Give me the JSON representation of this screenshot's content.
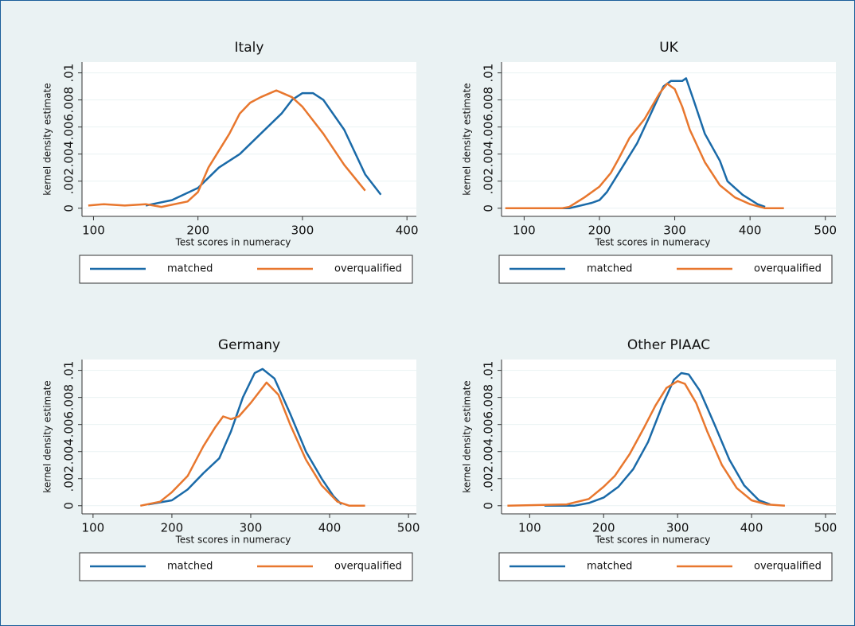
{
  "chart_data": [
    {
      "type": "line",
      "title": "Italy",
      "x_label": "Test scores in numeracy",
      "y_label": "kernel density estimate",
      "xlim": [
        89,
        409
      ],
      "ylim": [
        -0.0006,
        0.0108
      ],
      "xticks": [
        100,
        200,
        300,
        400
      ],
      "yticks": [
        0,
        {
          "value": 0.002,
          "label": ".002"
        },
        {
          "value": 0.004,
          "label": ".004"
        },
        {
          "value": 0.006,
          "label": ".006"
        },
        {
          "value": 0.008,
          "label": ".008"
        },
        {
          "value": 0.01,
          "label": ".01"
        }
      ],
      "grid": true,
      "series": [
        {
          "name": "matched",
          "color": "#1a6aa8",
          "x": [
            150,
            175,
            200,
            220,
            240,
            260,
            280,
            290,
            300,
            310,
            320,
            340,
            360,
            375
          ],
          "values": [
            0.0002,
            0.0006,
            0.0015,
            0.003,
            0.004,
            0.0055,
            0.007,
            0.008,
            0.0085,
            0.0085,
            0.008,
            0.0058,
            0.0025,
            0.001
          ]
        },
        {
          "name": "overqualified",
          "color": "#e8772e",
          "x": [
            95,
            110,
            130,
            150,
            165,
            190,
            200,
            210,
            230,
            240,
            250,
            260,
            275,
            290,
            300,
            320,
            340,
            360
          ],
          "values": [
            0.0002,
            0.0003,
            0.0002,
            0.0003,
            0.0001,
            0.0005,
            0.0012,
            0.003,
            0.0055,
            0.007,
            0.0078,
            0.0082,
            0.0087,
            0.0082,
            0.0075,
            0.0055,
            0.0032,
            0.0013
          ]
        }
      ]
    },
    {
      "type": "line",
      "title": "UK",
      "x_label": "Test scores in numeracy",
      "y_label": "kernel density estimate",
      "xlim": [
        70,
        514
      ],
      "ylim": [
        -0.0006,
        0.0108
      ],
      "xticks": [
        100,
        200,
        300,
        400,
        500
      ],
      "yticks": [
        0,
        {
          "value": 0.002,
          "label": ".002"
        },
        {
          "value": 0.004,
          "label": ".004"
        },
        {
          "value": 0.006,
          "label": ".006"
        },
        {
          "value": 0.008,
          "label": ".008"
        },
        {
          "value": 0.01,
          "label": ".01"
        }
      ],
      "grid": true,
      "series": [
        {
          "name": "matched",
          "color": "#1a6aa8",
          "x": [
            120,
            160,
            190,
            200,
            210,
            230,
            250,
            270,
            285,
            295,
            310,
            315,
            325,
            340,
            360,
            370,
            390,
            410,
            420
          ],
          "values": [
            0,
            0,
            0.0004,
            0.0006,
            0.0012,
            0.003,
            0.0048,
            0.0072,
            0.009,
            0.0094,
            0.0094,
            0.0096,
            0.008,
            0.0055,
            0.0035,
            0.002,
            0.001,
            0.0003,
            0.0001
          ]
        },
        {
          "name": "overqualified",
          "color": "#e8772e",
          "x": [
            75,
            150,
            160,
            180,
            200,
            215,
            225,
            240,
            260,
            280,
            290,
            300,
            310,
            320,
            340,
            360,
            380,
            400,
            420,
            445
          ],
          "values": [
            0,
            0,
            0.0001,
            0.0008,
            0.0016,
            0.0026,
            0.0036,
            0.0052,
            0.0066,
            0.0085,
            0.0092,
            0.0088,
            0.0075,
            0.0058,
            0.0034,
            0.0017,
            0.0008,
            0.0003,
            0,
            0
          ]
        }
      ]
    },
    {
      "type": "line",
      "title": "Germany",
      "x_label": "Test scores in numeracy",
      "y_label": "kernel density estimate",
      "xlim": [
        86,
        510
      ],
      "ylim": [
        -0.0006,
        0.0108
      ],
      "xticks": [
        100,
        200,
        300,
        400,
        500
      ],
      "yticks": [
        0,
        {
          "value": 0.002,
          "label": ".002"
        },
        {
          "value": 0.004,
          "label": ".004"
        },
        {
          "value": 0.006,
          "label": ".006"
        },
        {
          "value": 0.008,
          "label": ".008"
        },
        {
          "value": 0.01,
          "label": ".01"
        }
      ],
      "grid": true,
      "series": [
        {
          "name": "matched",
          "color": "#1a6aa8",
          "x": [
            170,
            200,
            220,
            240,
            260,
            275,
            290,
            305,
            315,
            330,
            350,
            370,
            390,
            405,
            415
          ],
          "values": [
            0.0001,
            0.0004,
            0.0012,
            0.0024,
            0.0035,
            0.0055,
            0.008,
            0.0098,
            0.0101,
            0.0094,
            0.0068,
            0.004,
            0.002,
            0.0007,
            0.0001
          ]
        },
        {
          "name": "overqualified",
          "color": "#e8772e",
          "x": [
            160,
            185,
            200,
            220,
            240,
            255,
            265,
            275,
            285,
            300,
            320,
            335,
            350,
            370,
            390,
            410,
            425,
            445
          ],
          "values": [
            0,
            0.0003,
            0.001,
            0.0022,
            0.0044,
            0.0058,
            0.0066,
            0.0064,
            0.0066,
            0.0076,
            0.0091,
            0.0082,
            0.006,
            0.0034,
            0.0015,
            0.0003,
            0,
            0
          ]
        }
      ]
    },
    {
      "type": "line",
      "title": "Other PIAAC",
      "x_label": "Test scores in numeracy",
      "y_label": "kernel density estimate",
      "xlim": [
        62,
        514
      ],
      "ylim": [
        -0.0006,
        0.0108
      ],
      "xticks": [
        100,
        200,
        300,
        400,
        500
      ],
      "yticks": [
        0,
        {
          "value": 0.002,
          "label": ".002"
        },
        {
          "value": 0.004,
          "label": ".004"
        },
        {
          "value": 0.006,
          "label": ".006"
        },
        {
          "value": 0.008,
          "label": ".008"
        },
        {
          "value": 0.01,
          "label": ".01"
        }
      ],
      "grid": true,
      "series": [
        {
          "name": "matched",
          "color": "#1a6aa8",
          "x": [
            120,
            160,
            180,
            200,
            220,
            240,
            260,
            280,
            295,
            305,
            315,
            330,
            350,
            370,
            390,
            410,
            425
          ],
          "values": [
            0,
            0,
            0.0002,
            0.0006,
            0.0014,
            0.0027,
            0.0047,
            0.0075,
            0.0093,
            0.0098,
            0.0097,
            0.0085,
            0.006,
            0.0034,
            0.0015,
            0.0004,
            0.0001
          ]
        },
        {
          "name": "overqualified",
          "color": "#e8772e",
          "x": [
            70,
            150,
            180,
            200,
            215,
            235,
            255,
            270,
            285,
            300,
            310,
            325,
            340,
            360,
            380,
            400,
            420,
            445
          ],
          "values": [
            0,
            0.0001,
            0.0005,
            0.0014,
            0.0022,
            0.0038,
            0.0058,
            0.0074,
            0.0087,
            0.0092,
            0.009,
            0.0076,
            0.0055,
            0.003,
            0.0013,
            0.0004,
            0.0001,
            0
          ]
        }
      ]
    }
  ]
}
